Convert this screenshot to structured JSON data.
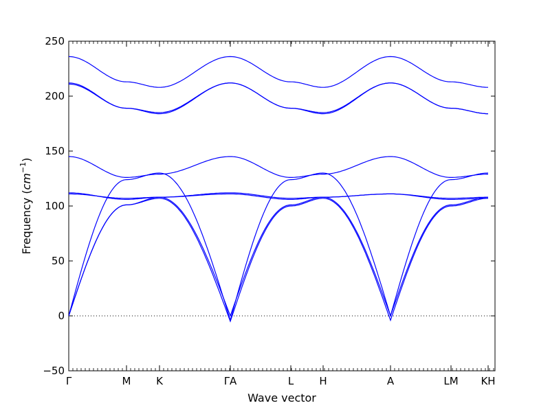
{
  "chart_data": {
    "type": "line",
    "title": "",
    "xlabel": "Wave vector",
    "ylabel_prefix": "Frequency (",
    "ylabel_unit_base": "cm",
    "ylabel_unit_exp": "−1",
    "ylabel_suffix": ")",
    "ylim": [
      -50,
      250
    ],
    "yticks": [
      -50,
      0,
      50,
      100,
      150,
      200,
      250
    ],
    "xlim": [
      0,
      6.2
    ],
    "high_symmetry_points": [
      {
        "label": "Γ",
        "x": 0
      },
      {
        "label": "M",
        "x": 0.84
      },
      {
        "label": "K",
        "x": 1.32
      },
      {
        "label": "ΓA",
        "x": 2.35
      },
      {
        "label": "L",
        "x": 3.23
      },
      {
        "label": "H",
        "x": 3.7
      },
      {
        "label": "A",
        "x": 4.68
      },
      {
        "label": "LM",
        "x": 5.56
      },
      {
        "label": "KH",
        "x": 6.1
      }
    ],
    "zero_line": {
      "y": 0,
      "style": "dotted"
    },
    "line_color": "#0000ff",
    "segments": [
      {
        "from": "Γ",
        "to": "M",
        "x": [
          0,
          0.84
        ]
      },
      {
        "from": "M",
        "to": "K",
        "x": [
          0.84,
          1.32
        ]
      },
      {
        "from": "K",
        "to": "Γ",
        "x": [
          1.32,
          2.28
        ]
      },
      {
        "from": "A",
        "to": "L",
        "x": [
          2.4,
          3.23
        ]
      },
      {
        "from": "L",
        "to": "H",
        "x": [
          3.23,
          3.7
        ]
      },
      {
        "from": "H",
        "to": "A",
        "x": [
          3.7,
          4.68
        ]
      },
      {
        "from": "A",
        "to": "L",
        "x": [
          4.68,
          5.52
        ]
      },
      {
        "from": "M",
        "to": "K",
        "x": [
          5.58,
          6.07
        ]
      },
      {
        "from": "H",
        "to": "end",
        "x": [
          6.13,
          6.2
        ]
      }
    ],
    "bands": [
      {
        "band": 1,
        "values_at_points": {
          "Γ": 0,
          "M": 101,
          "K": 108,
          "ΓA": 0,
          "L": 101,
          "H": 108,
          "A": 0,
          "LM": 101,
          "KH": 108
        }
      },
      {
        "band": 2,
        "values_at_points": {
          "Γ": 0,
          "M": 101,
          "K": 107,
          "ΓA": -5,
          "L": 100,
          "H": 107,
          "A": -4,
          "LM": 100,
          "KH": 107
        }
      },
      {
        "band": 3,
        "values_at_points": {
          "Γ": 0,
          "M": 124,
          "K": 130,
          "ΓA": -4,
          "L": 124,
          "H": 130,
          "A": 0,
          "LM": 124,
          "KH": 130
        }
      },
      {
        "band": 4,
        "values_at_points": {
          "Γ": 111,
          "M": 107,
          "K": 108,
          "ΓA": 111,
          "L": 106,
          "H": 108,
          "A": 111,
          "LM": 106,
          "KH": 107
        }
      },
      {
        "band": 5,
        "values_at_points": {
          "Γ": 112,
          "M": 106,
          "K": 108,
          "ΓA": 112,
          "L": 107,
          "H": 108,
          "A": 111,
          "LM": 107,
          "KH": 108
        }
      },
      {
        "band": 6,
        "values_at_points": {
          "Γ": 145,
          "M": 126,
          "K": 129,
          "ΓA": 145,
          "L": 126,
          "H": 129,
          "A": 145,
          "LM": 126,
          "KH": 129
        }
      },
      {
        "band": 7,
        "values_at_points": {
          "Γ": 212,
          "M": 189,
          "K": 185,
          "ΓA": 212,
          "L": 189,
          "H": 185,
          "A": 212,
          "LM": 189,
          "KH": 184
        }
      },
      {
        "band": 8,
        "values_at_points": {
          "Γ": 211,
          "M": 189,
          "K": 184,
          "ΓA": 212,
          "L": 189,
          "H": 184,
          "A": 212,
          "LM": 189,
          "KH": 184
        }
      },
      {
        "band": 9,
        "values_at_points": {
          "Γ": 236,
          "M": 213,
          "K": 208,
          "ΓA": 236,
          "L": 213,
          "H": 208,
          "A": 236,
          "LM": 213,
          "KH": 208
        }
      }
    ]
  }
}
